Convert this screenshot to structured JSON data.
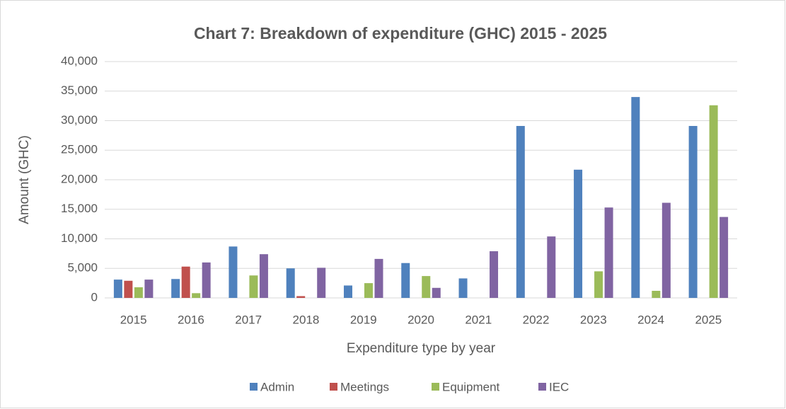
{
  "chart_data": {
    "type": "bar",
    "title": "Chart 7: Breakdown of expenditure (GHC) 2015 - 2025",
    "y_label": "Amount (GHC)",
    "x_label": "Expenditure type by year",
    "categories": [
      "2015",
      "2016",
      "2017",
      "2018",
      "2019",
      "2020",
      "2021",
      "2022",
      "2023",
      "2024",
      "2025"
    ],
    "series": [
      {
        "name": "Admin",
        "color": "#4f81bd",
        "values": [
          3100,
          3200,
          8700,
          5000,
          2100,
          5900,
          3300,
          29100,
          21700,
          34000,
          29100
        ]
      },
      {
        "name": "Meetings",
        "color": "#c0504d",
        "values": [
          2900,
          5300,
          0,
          300,
          0,
          0,
          0,
          0,
          0,
          0,
          0
        ]
      },
      {
        "name": "Equipment",
        "color": "#9bbb59",
        "values": [
          1800,
          800,
          3800,
          0,
          2500,
          3700,
          0,
          0,
          4500,
          1200,
          32600
        ]
      },
      {
        "name": "IEC",
        "color": "#8064a2",
        "values": [
          3100,
          6000,
          7400,
          5100,
          6600,
          1700,
          7900,
          10400,
          15300,
          16100,
          13700
        ]
      }
    ],
    "ylim": [
      0,
      40000
    ],
    "yticks": [
      0,
      {
        "value": 5000,
        "label": "5,000"
      },
      {
        "value": 10000,
        "label": "10,000"
      },
      {
        "value": 15000,
        "label": "15,000"
      },
      {
        "value": 20000,
        "label": "20,000"
      },
      {
        "value": 25000,
        "label": "25,000"
      },
      {
        "value": 30000,
        "label": "30,000"
      },
      {
        "value": 35000,
        "label": "35,000"
      },
      {
        "value": 40000,
        "label": "40,000"
      }
    ],
    "grid": true,
    "legend": "bottom"
  }
}
